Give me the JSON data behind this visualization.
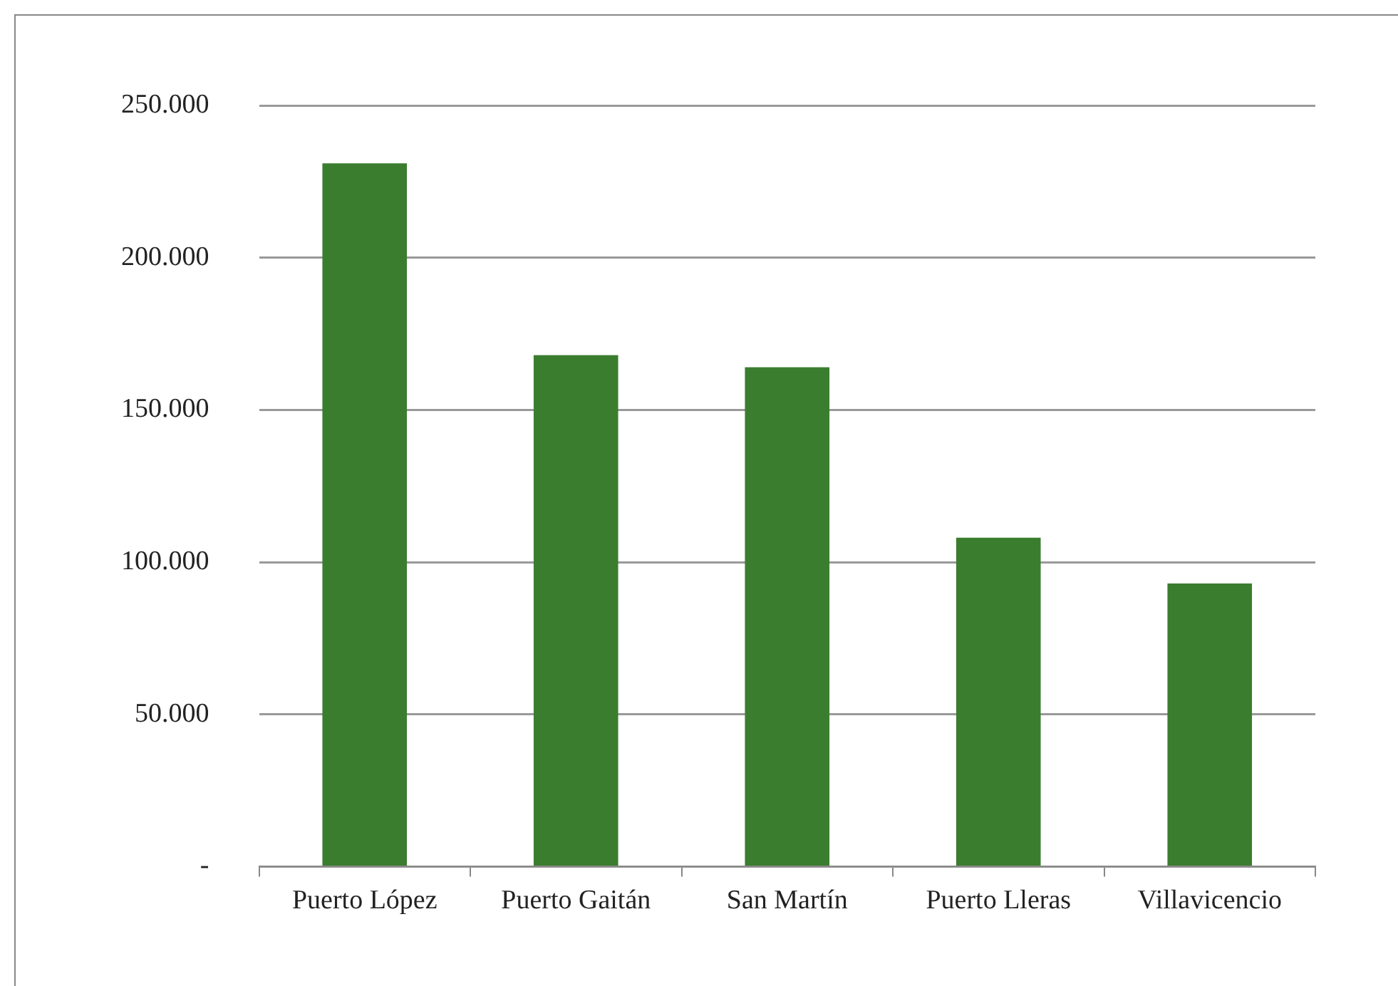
{
  "chart_data": {
    "type": "bar",
    "categories": [
      "Puerto López",
      "Puerto Gaitán",
      "San Martín",
      "Puerto Lleras",
      "Villavicencio"
    ],
    "values": [
      231000,
      168000,
      164000,
      108000,
      93000
    ],
    "color": "#3a7d2e",
    "ylim": [
      0,
      250000
    ],
    "yticks": [
      {
        "value": 0,
        "label": "-"
      },
      {
        "value": 50000,
        "label": "50.000"
      },
      {
        "value": 100000,
        "label": "100.000"
      },
      {
        "value": 150000,
        "label": "150.000"
      },
      {
        "value": 200000,
        "label": "200.000"
      },
      {
        "value": 250000,
        "label": "250.000"
      }
    ],
    "grid": "y",
    "legend": false
  }
}
